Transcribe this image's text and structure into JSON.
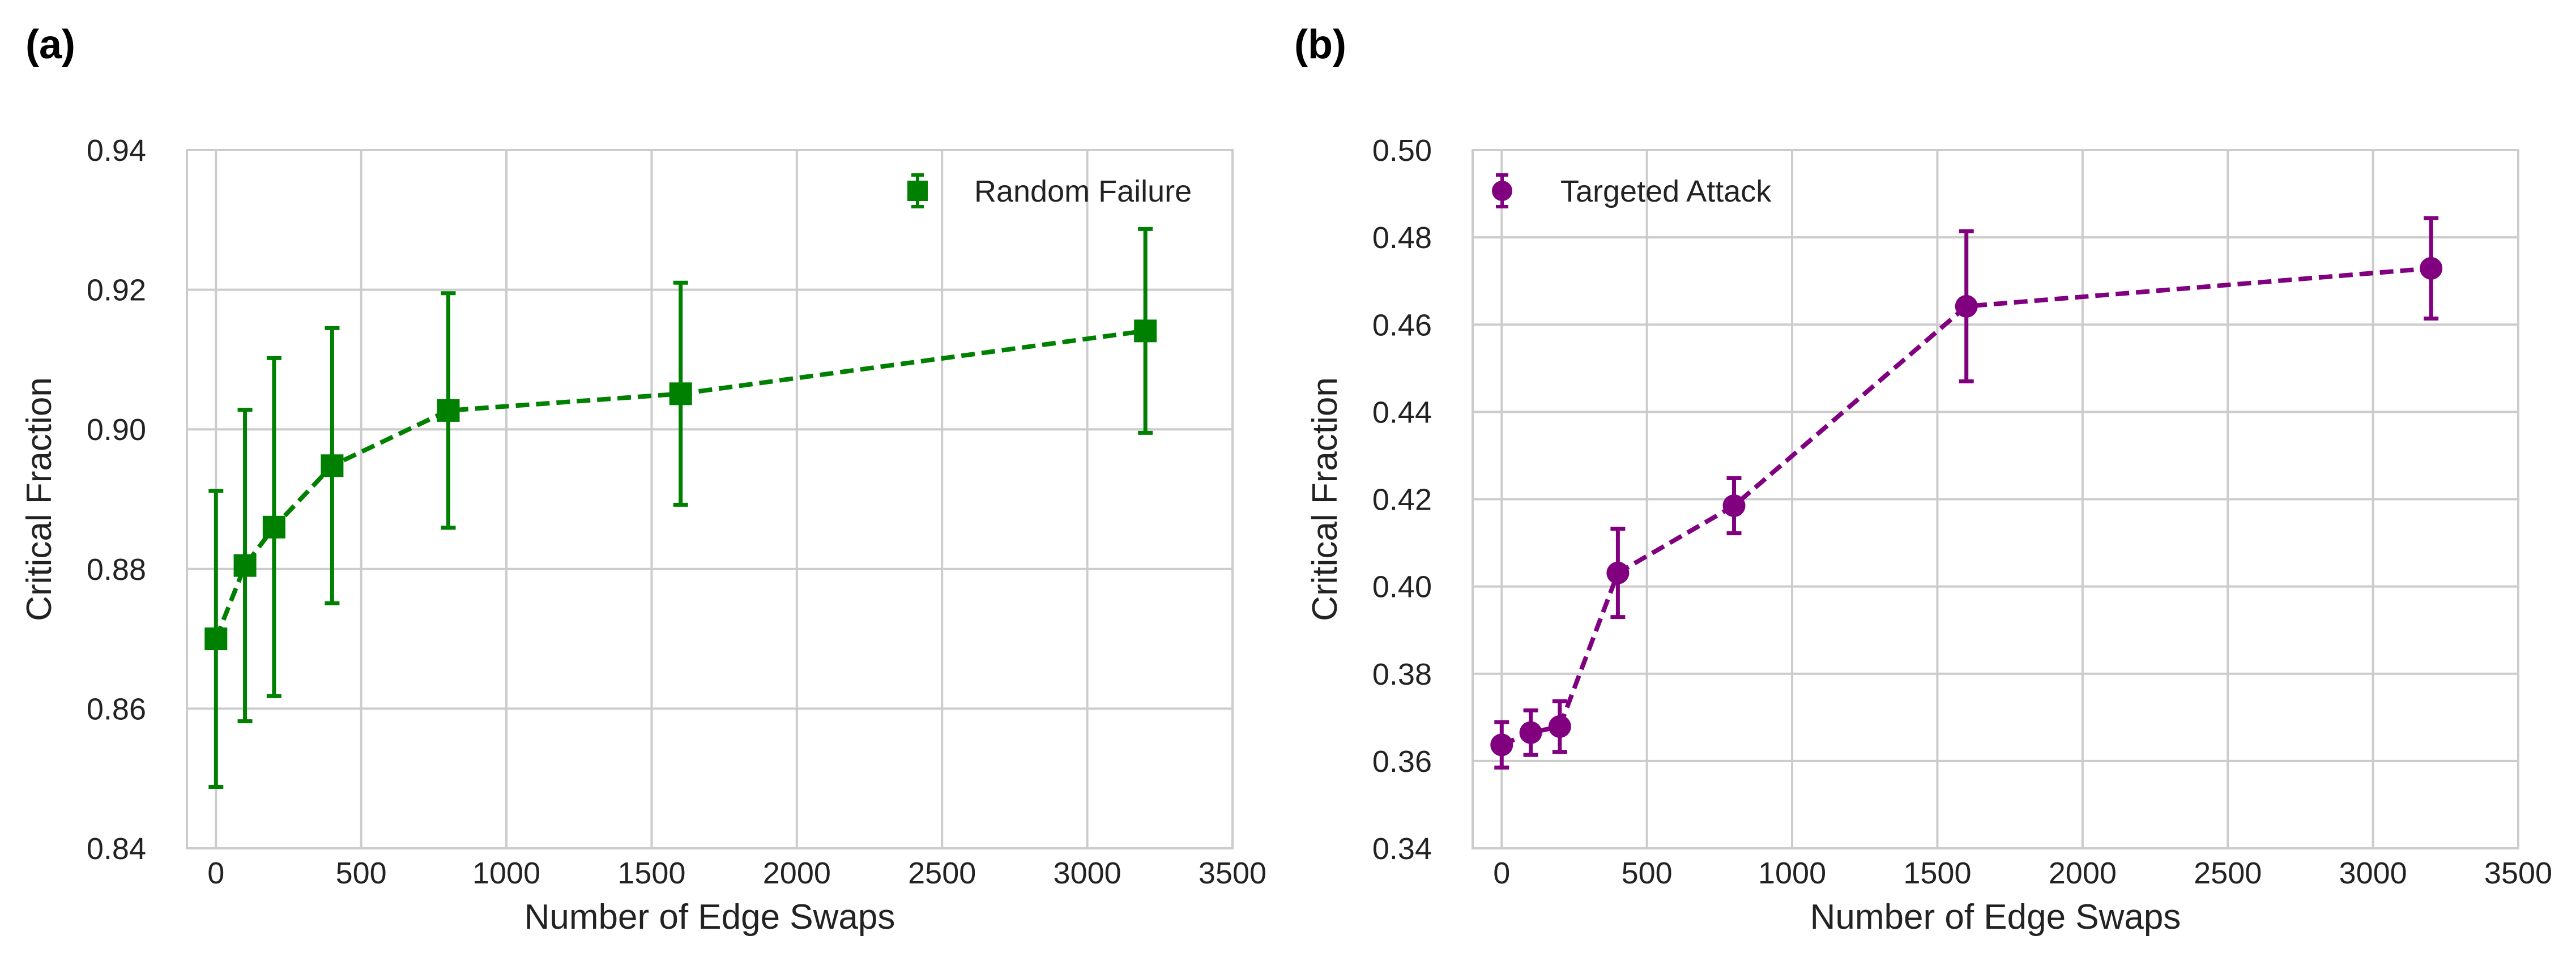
{
  "panels": [
    {
      "label": "(a)",
      "chart_data": {
        "type": "line",
        "xlabel": "Number of Edge Swaps",
        "ylabel": "Critical Fraction",
        "xlim": [
          -100,
          3500
        ],
        "ylim": [
          0.84,
          0.94
        ],
        "xticks": [
          0,
          500,
          1000,
          1500,
          2000,
          2500,
          3000,
          3500
        ],
        "yticks": [
          0.84,
          0.86,
          0.88,
          0.9,
          0.92,
          0.94
        ],
        "xtick_labels": [
          "0",
          "500",
          "1000",
          "1500",
          "2000",
          "2500",
          "3000",
          "3500"
        ],
        "ytick_labels": [
          "0.84",
          "0.86",
          "0.88",
          "0.90",
          "0.92",
          "0.94"
        ],
        "grid": true,
        "legend_position": "top-right",
        "series": [
          {
            "name": "Random Failure",
            "color": "#008000",
            "marker": "square",
            "line_style": "dashed",
            "x": [
              0,
              100,
              200,
              400,
              800,
              1600,
              3200
            ],
            "y": [
              0.87,
              0.8805,
              0.886,
              0.8948,
              0.9027,
              0.9051,
              0.9141
            ],
            "yerr": [
              0.0212,
              0.0223,
              0.0242,
              0.0197,
              0.0168,
              0.0159,
              0.0146
            ]
          }
        ]
      }
    },
    {
      "label": "(b)",
      "chart_data": {
        "type": "line",
        "xlabel": "Number of Edge Swaps",
        "ylabel": "Critical Fraction",
        "xlim": [
          -100,
          3500
        ],
        "ylim": [
          0.34,
          0.5
        ],
        "xticks": [
          0,
          500,
          1000,
          1500,
          2000,
          2500,
          3000,
          3500
        ],
        "yticks": [
          0.34,
          0.36,
          0.38,
          0.4,
          0.42,
          0.44,
          0.46,
          0.48,
          0.5
        ],
        "xtick_labels": [
          "0",
          "500",
          "1000",
          "1500",
          "2000",
          "2500",
          "3000",
          "3500"
        ],
        "ytick_labels": [
          "0.34",
          "0.36",
          "0.38",
          "0.40",
          "0.42",
          "0.44",
          "0.46",
          "0.48",
          "0.50"
        ],
        "grid": true,
        "legend_position": "top-left",
        "series": [
          {
            "name": "Targeted Attack",
            "color": "#800080",
            "marker": "circle",
            "line_style": "dashed",
            "x": [
              0,
              100,
              200,
              400,
              800,
              1600,
              3200
            ],
            "y": [
              0.3637,
              0.3665,
              0.3679,
              0.4031,
              0.4185,
              0.4642,
              0.4729
            ],
            "yerr": [
              0.0052,
              0.0051,
              0.0058,
              0.0101,
              0.0063,
              0.0172,
              0.0115
            ]
          }
        ]
      }
    }
  ]
}
